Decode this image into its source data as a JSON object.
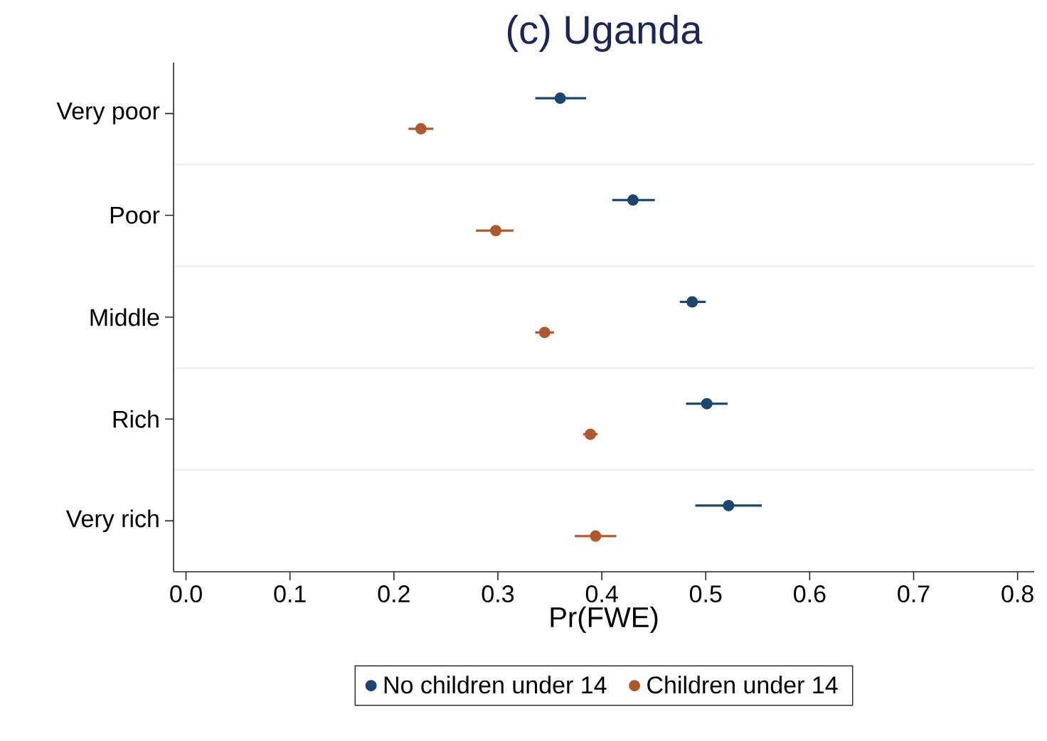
{
  "chart_data": {
    "type": "scatter",
    "title": "(c) Uganda",
    "xlabel": "Pr(FWE)",
    "orientation": "horizontal",
    "categories": [
      "Very poor",
      "Poor",
      "Middle",
      "Rich",
      "Very rich"
    ],
    "series": [
      {
        "name": "No children under 14",
        "color": "#1a476f",
        "values": [
          0.36,
          0.43,
          0.487,
          0.501,
          0.522
        ],
        "errors": [
          [
            0.336,
            0.385
          ],
          [
            0.41,
            0.451
          ],
          [
            0.475,
            0.5
          ],
          [
            0.481,
            0.521
          ],
          [
            0.49,
            0.554
          ]
        ]
      },
      {
        "name": "Children under 14",
        "color": "#b0582c",
        "values": [
          0.226,
          0.298,
          0.345,
          0.389,
          0.394
        ],
        "errors": [
          [
            0.214,
            0.238
          ],
          [
            0.279,
            0.315
          ],
          [
            0.336,
            0.354
          ],
          [
            0.382,
            0.396
          ],
          [
            0.374,
            0.414
          ]
        ]
      }
    ],
    "xlim": [
      -0.012,
      0.816
    ],
    "xticks": [
      {
        "value": 0,
        "label": "0.0"
      },
      0.1,
      0.2,
      0.3,
      0.4,
      0.5,
      0.6,
      0.7,
      0.8
    ],
    "grid": "y",
    "legend": "bottom",
    "marker": "circle"
  }
}
